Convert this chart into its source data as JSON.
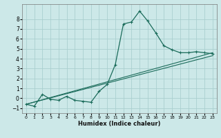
{
  "title": "",
  "xlabel": "Humidex (Indice chaleur)",
  "bg_color": "#cce8e8",
  "grid_color": "#aacfcf",
  "line_color": "#1a6b5a",
  "xlim": [
    -0.5,
    23.5
  ],
  "ylim": [
    -1.5,
    9.5
  ],
  "xticks": [
    0,
    1,
    2,
    3,
    4,
    5,
    6,
    7,
    8,
    9,
    10,
    11,
    12,
    13,
    14,
    15,
    16,
    17,
    18,
    19,
    20,
    21,
    22,
    23
  ],
  "yticks": [
    -1,
    0,
    1,
    2,
    3,
    4,
    5,
    6,
    7,
    8
  ],
  "curve1_x": [
    0,
    1,
    2,
    3,
    4,
    5,
    6,
    7,
    8,
    9,
    10,
    11,
    12,
    13,
    14,
    15,
    16,
    17,
    18,
    19,
    20,
    21,
    22,
    23
  ],
  "curve1_y": [
    -0.6,
    -0.8,
    0.4,
    -0.1,
    -0.2,
    0.2,
    -0.2,
    -0.3,
    -0.4,
    0.7,
    1.4,
    3.4,
    7.5,
    7.7,
    8.8,
    7.8,
    6.6,
    5.3,
    4.9,
    4.6,
    4.6,
    4.7,
    4.6,
    4.5
  ],
  "curve2_x": [
    0,
    23
  ],
  "curve2_y": [
    -0.6,
    4.6
  ],
  "curve3_x": [
    0,
    23
  ],
  "curve3_y": [
    -0.6,
    4.3
  ],
  "xlabel_fontsize": 6.0,
  "tick_fontsize_x": 4.5,
  "tick_fontsize_y": 5.5
}
